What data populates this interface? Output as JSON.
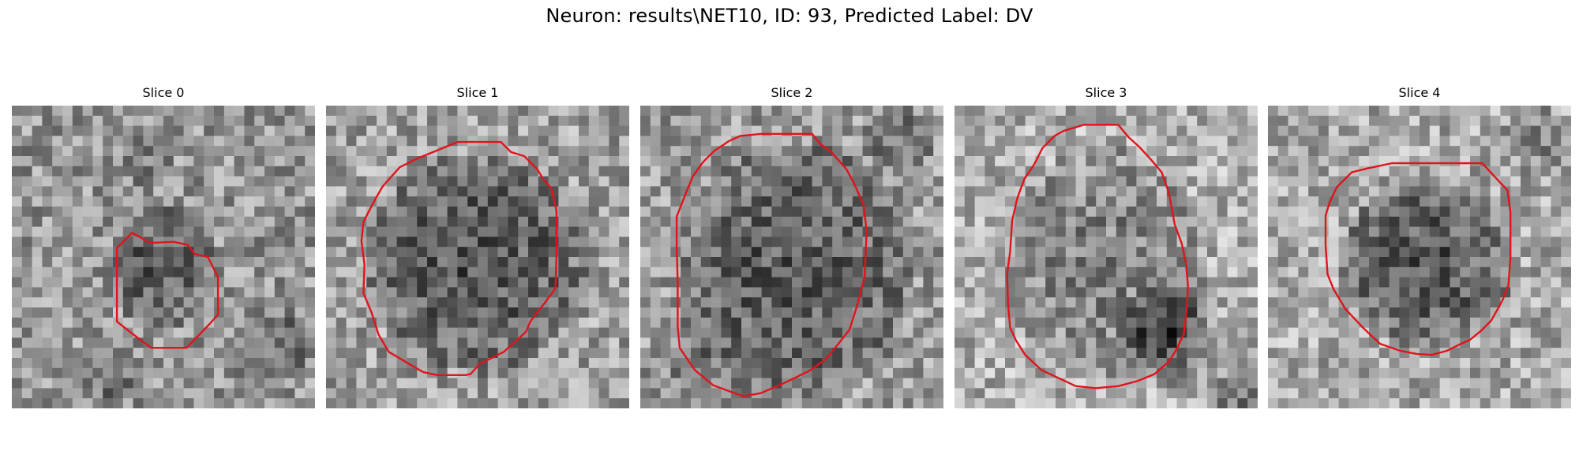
{
  "figure": {
    "title": "Neuron: results\\NET10, ID: 93, Predicted Label: DV",
    "contour_color": "#e0141c",
    "colormap": "gray",
    "grid_size": 30
  },
  "panels": [
    {
      "title": "Slice 0",
      "image": "noisy grayscale microscopy patch with a small dark cell outlined in red"
    },
    {
      "title": "Slice 1",
      "image": "noisy grayscale microscopy patch with a large dark cell outlined in red"
    },
    {
      "title": "Slice 2",
      "image": "noisy grayscale microscopy patch with a large dark cell outlined in red"
    },
    {
      "title": "Slice 3",
      "image": "noisy grayscale microscopy patch with a large oval cell outlined in red"
    },
    {
      "title": "Slice 4",
      "image": "noisy grayscale microscopy patch with a medium dark cell outlined in red"
    }
  ]
}
